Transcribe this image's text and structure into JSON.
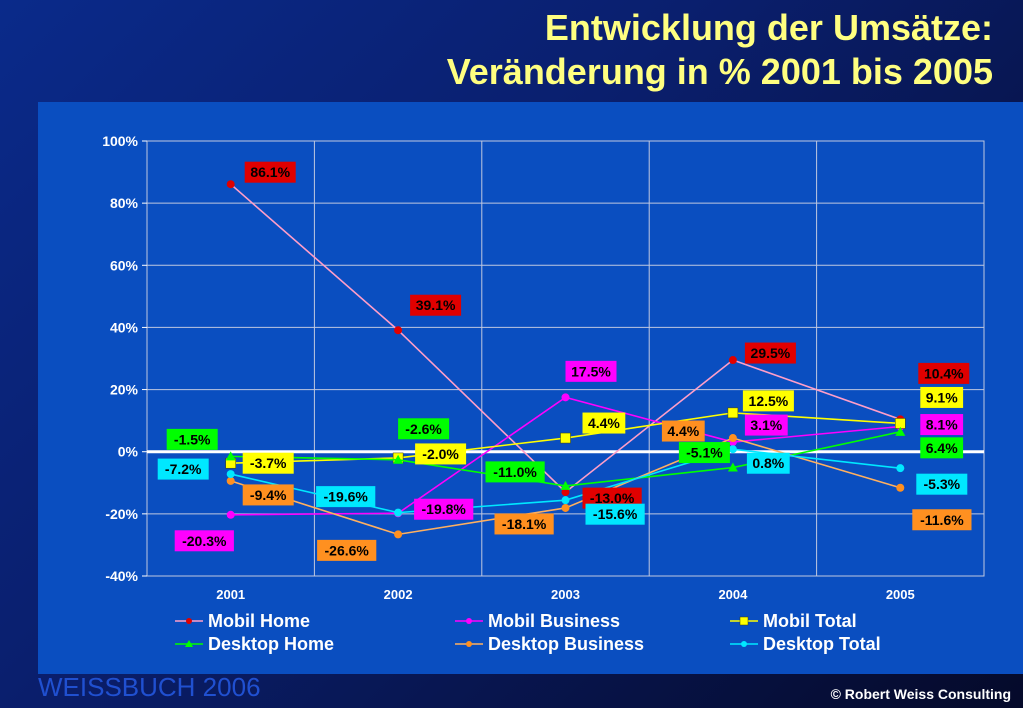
{
  "title": {
    "line1": "Entwicklung der Umsätze:",
    "line2": "Veränderung in % 2001 bis 2005"
  },
  "footer": {
    "brand": "WEISSBUCH  2006",
    "copyright": "© Robert Weiss Consulting"
  },
  "colors": {
    "title": "#ffff80",
    "panel": "#0a4ec0"
  },
  "chart_data": {
    "type": "line",
    "categories": [
      "2001",
      "2002",
      "2003",
      "2004",
      "2005"
    ],
    "ylim": [
      -40,
      100
    ],
    "yticks": [
      "-40%",
      "-20%",
      "0%",
      "20%",
      "40%",
      "60%",
      "80%",
      "100%"
    ],
    "ytick_values": [
      -40,
      -20,
      0,
      20,
      40,
      60,
      80,
      100
    ],
    "grid": true,
    "legend_position": "bottom",
    "series": [
      {
        "name": "Mobil Home",
        "color": "#ff9ec8",
        "marker": "circle",
        "marker_color": "#e00000",
        "label_bg": "#e00000",
        "label_fg": "#000000",
        "values": [
          86.1,
          39.1,
          -13.0,
          29.5,
          10.4
        ],
        "labels": [
          "86.1%",
          "39.1%",
          "-13.0%",
          "29.5%",
          "10.4%"
        ]
      },
      {
        "name": "Mobil Business",
        "color": "#ff00ff",
        "marker": "circle",
        "marker_color": "#ff00ff",
        "label_bg": "#ff00ff",
        "label_fg": "#000000",
        "values": [
          -20.3,
          -19.8,
          17.5,
          3.1,
          8.1
        ],
        "labels": [
          "-20.3%",
          "-19.8%",
          "17.5%",
          "3.1%",
          "8.1%"
        ]
      },
      {
        "name": "Mobil Total",
        "color": "#ffff00",
        "marker": "square",
        "marker_color": "#ffff00",
        "label_bg": "#ffff00",
        "label_fg": "#000000",
        "values": [
          -3.7,
          -2.0,
          4.4,
          12.5,
          9.1
        ],
        "labels": [
          "-3.7%",
          "-2.0%",
          "4.4%",
          "12.5%",
          "9.1%"
        ]
      },
      {
        "name": "Desktop Home",
        "color": "#00ff00",
        "marker": "triangle",
        "marker_color": "#00ff00",
        "label_bg": "#00ff00",
        "label_fg": "#000000",
        "values": [
          -1.5,
          -2.6,
          -11.0,
          -5.1,
          6.4
        ],
        "labels": [
          "-1.5%",
          "-2.6%",
          "-11.0%",
          "-5.1%",
          "6.4%"
        ]
      },
      {
        "name": "Desktop Business",
        "color": "#ffb060",
        "marker": "circle",
        "marker_color": "#ff9020",
        "label_bg": "#ff9020",
        "label_fg": "#000000",
        "values": [
          -9.4,
          -26.6,
          -18.1,
          4.4,
          -11.6
        ],
        "labels": [
          "-9.4%",
          "-26.6%",
          "-18.1%",
          "4.4%",
          "-11.6%"
        ]
      },
      {
        "name": "Desktop Total",
        "color": "#00e8ff",
        "marker": "circle",
        "marker_color": "#00e8ff",
        "label_bg": "#00e8ff",
        "label_fg": "#000000",
        "values": [
          -7.2,
          -19.6,
          -15.6,
          0.8,
          -5.3
        ],
        "labels": [
          "-7.2%",
          "-19.6%",
          "-15.6%",
          "0.8%",
          "-5.3%"
        ]
      }
    ]
  }
}
